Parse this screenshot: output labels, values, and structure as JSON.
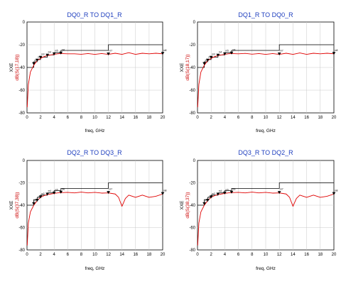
{
  "chart_data": [
    {
      "type": "line",
      "title": "DQ0_R TO DQ1_R",
      "xlabel": "freq, GHz",
      "ylabel_line1": "XXE",
      "ylabel_line2": "dB(S(17,18))",
      "xlim": [
        0,
        20
      ],
      "ylim": [
        -80,
        0
      ],
      "x_ticks": [
        0,
        2,
        4,
        6,
        8,
        10,
        12,
        14,
        16,
        18,
        20
      ],
      "y_ticks": [
        0,
        -20,
        -40,
        -60,
        -80
      ],
      "grid": true,
      "colors": {
        "curve": "#e00000",
        "mask": "#000000"
      },
      "series": [
        {
          "name": "",
          "x": [
            0.03,
            0.2,
            0.5,
            1,
            1.5,
            2,
            2.5,
            3,
            3.5,
            4,
            4.5,
            5,
            6,
            7,
            8,
            9,
            10,
            11,
            12,
            13,
            14,
            15,
            16,
            17,
            18,
            19,
            20
          ],
          "y": [
            -75,
            -55,
            -44,
            -38,
            -34,
            -32,
            -30.5,
            -29.5,
            -29,
            -28.5,
            -28,
            -27.8,
            -28,
            -28,
            -28.4,
            -27.8,
            -28.5,
            -27.8,
            -28.5,
            -27.5,
            -28.5,
            -27,
            -28.5,
            -27.5,
            -28,
            -27.5,
            -28
          ]
        },
        {
          "name": "",
          "x": [
            0,
            1,
            1,
            1.5,
            1.5,
            2,
            2,
            3,
            3,
            4,
            4,
            5,
            5,
            12,
            12,
            20
          ],
          "y": [
            -40,
            -40,
            -35,
            -35,
            -33,
            -33,
            -31,
            -31,
            -29,
            -29,
            -27,
            -27,
            -25,
            -25,
            -20,
            -20
          ]
        }
      ],
      "markers": {
        "x": [
          1,
          1.5,
          2,
          3,
          4,
          5,
          12,
          20
        ],
        "y": [
          -37,
          -34,
          -31.5,
          -29.6,
          -28.4,
          -27.7,
          -28.5,
          -28
        ]
      }
    },
    {
      "type": "line",
      "title": "DQ1_R TO DQ0_R",
      "xlabel": "freq, GHz",
      "ylabel_line1": "XXE",
      "ylabel_line2": "dB(S(18,17))",
      "xlim": [
        0,
        20
      ],
      "ylim": [
        -80,
        0
      ],
      "x_ticks": [
        0,
        2,
        4,
        6,
        8,
        10,
        12,
        14,
        16,
        18,
        20
      ],
      "y_ticks": [
        0,
        -20,
        -40,
        -60,
        -80
      ],
      "grid": true,
      "colors": {
        "curve": "#e00000",
        "mask": "#000000"
      },
      "series": [
        {
          "name": "",
          "x": [
            0.03,
            0.2,
            0.5,
            1,
            1.5,
            2,
            2.5,
            3,
            3.5,
            4,
            4.5,
            5,
            6,
            7,
            8,
            9,
            10,
            11,
            12,
            13,
            14,
            15,
            16,
            17,
            18,
            19,
            20
          ],
          "y": [
            -75,
            -55,
            -44,
            -38,
            -34,
            -32,
            -30.5,
            -29.5,
            -29,
            -28.5,
            -28,
            -27.8,
            -28,
            -27.6,
            -28.3,
            -27.8,
            -28.5,
            -27.8,
            -28.5,
            -27.5,
            -28.5,
            -27.2,
            -28.5,
            -27.5,
            -28,
            -27.5,
            -28
          ]
        },
        {
          "name": "",
          "x": [
            0,
            1,
            1,
            1.5,
            1.5,
            2,
            2,
            3,
            3,
            4,
            4,
            5,
            5,
            12,
            12,
            20
          ],
          "y": [
            -40,
            -40,
            -35,
            -35,
            -33,
            -33,
            -31,
            -31,
            -29,
            -29,
            -27,
            -27,
            -25,
            -25,
            -20,
            -20
          ]
        }
      ],
      "markers": {
        "x": [
          1,
          1.5,
          2,
          3,
          4,
          5,
          12,
          20
        ],
        "y": [
          -37,
          -34,
          -31.5,
          -29.6,
          -28.4,
          -27.7,
          -28.5,
          -28
        ]
      }
    },
    {
      "type": "line",
      "title": "DQ2_R TO DQ3_R",
      "xlabel": "freq, GHz",
      "ylabel_line1": "XXE",
      "ylabel_line2": "dB(S(37,38))",
      "xlim": [
        0,
        20
      ],
      "ylim": [
        -80,
        0
      ],
      "x_ticks": [
        0,
        2,
        4,
        6,
        8,
        10,
        12,
        14,
        16,
        18,
        20
      ],
      "y_ticks": [
        0,
        -20,
        -40,
        -60,
        -80
      ],
      "grid": true,
      "colors": {
        "curve": "#e00000",
        "mask": "#000000"
      },
      "series": [
        {
          "name": "",
          "x": [
            0.03,
            0.2,
            0.5,
            1,
            1.5,
            2,
            2.5,
            3,
            3.5,
            4,
            4.5,
            5,
            6,
            7,
            8,
            9,
            10,
            11,
            12,
            13,
            13.5,
            14,
            14.5,
            15,
            16,
            17,
            18,
            19,
            20
          ],
          "y": [
            -76,
            -56,
            -46,
            -40,
            -36,
            -33,
            -31.5,
            -30.5,
            -30,
            -29.5,
            -29,
            -28.8,
            -28.5,
            -29,
            -28.3,
            -29,
            -28.5,
            -29.2,
            -29,
            -30,
            -33,
            -41,
            -34,
            -31,
            -33,
            -31,
            -33,
            -32,
            -30
          ]
        },
        {
          "name": "",
          "x": [
            0,
            1,
            1,
            1.5,
            1.5,
            2,
            2,
            3,
            3,
            4,
            4,
            5,
            5,
            12,
            12,
            20
          ],
          "y": [
            -40,
            -40,
            -35,
            -35,
            -33,
            -33,
            -31,
            -31,
            -29,
            -29,
            -27,
            -27,
            -25,
            -25,
            -20,
            -20
          ]
        }
      ],
      "markers": {
        "x": [
          1,
          1.5,
          2,
          3,
          4,
          5,
          12,
          20
        ],
        "y": [
          -39,
          -36,
          -33,
          -30.5,
          -29.5,
          -28.8,
          -29,
          -30
        ]
      }
    },
    {
      "type": "line",
      "title": "DQ3_R TO DQ2_R",
      "xlabel": "freq, GHz",
      "ylabel_line1": "XXE",
      "ylabel_line2": "dB(S(38,37))",
      "xlim": [
        0,
        20
      ],
      "ylim": [
        -80,
        0
      ],
      "x_ticks": [
        0,
        2,
        4,
        6,
        8,
        10,
        12,
        14,
        16,
        18,
        20
      ],
      "y_ticks": [
        0,
        -20,
        -40,
        -60,
        -80
      ],
      "grid": true,
      "colors": {
        "curve": "#e00000",
        "mask": "#000000"
      },
      "series": [
        {
          "name": "",
          "x": [
            0.03,
            0.2,
            0.5,
            1,
            1.5,
            2,
            2.5,
            3,
            3.5,
            4,
            4.5,
            5,
            6,
            7,
            8,
            9,
            10,
            11,
            12,
            13,
            13.5,
            14,
            14.5,
            15,
            16,
            17,
            18,
            19,
            20
          ],
          "y": [
            -76,
            -56,
            -46,
            -40,
            -36,
            -33,
            -31.5,
            -30.5,
            -30,
            -29.5,
            -29,
            -28.8,
            -28.5,
            -29,
            -28.3,
            -29,
            -28.5,
            -29.2,
            -29,
            -30,
            -33,
            -41,
            -34,
            -31,
            -33,
            -31,
            -33,
            -32,
            -30
          ]
        },
        {
          "name": "",
          "x": [
            0,
            1,
            1,
            1.5,
            1.5,
            2,
            2,
            3,
            3,
            4,
            4,
            5,
            5,
            12,
            12,
            20
          ],
          "y": [
            -40,
            -40,
            -35,
            -35,
            -33,
            -33,
            -31,
            -31,
            -29,
            -29,
            -27,
            -27,
            -25,
            -25,
            -20,
            -20
          ]
        }
      ],
      "markers": {
        "x": [
          1,
          1.5,
          2,
          3,
          4,
          5,
          12,
          20
        ],
        "y": [
          -39,
          -36,
          -33,
          -30.5,
          -29.5,
          -28.8,
          -29,
          -30
        ]
      }
    }
  ]
}
